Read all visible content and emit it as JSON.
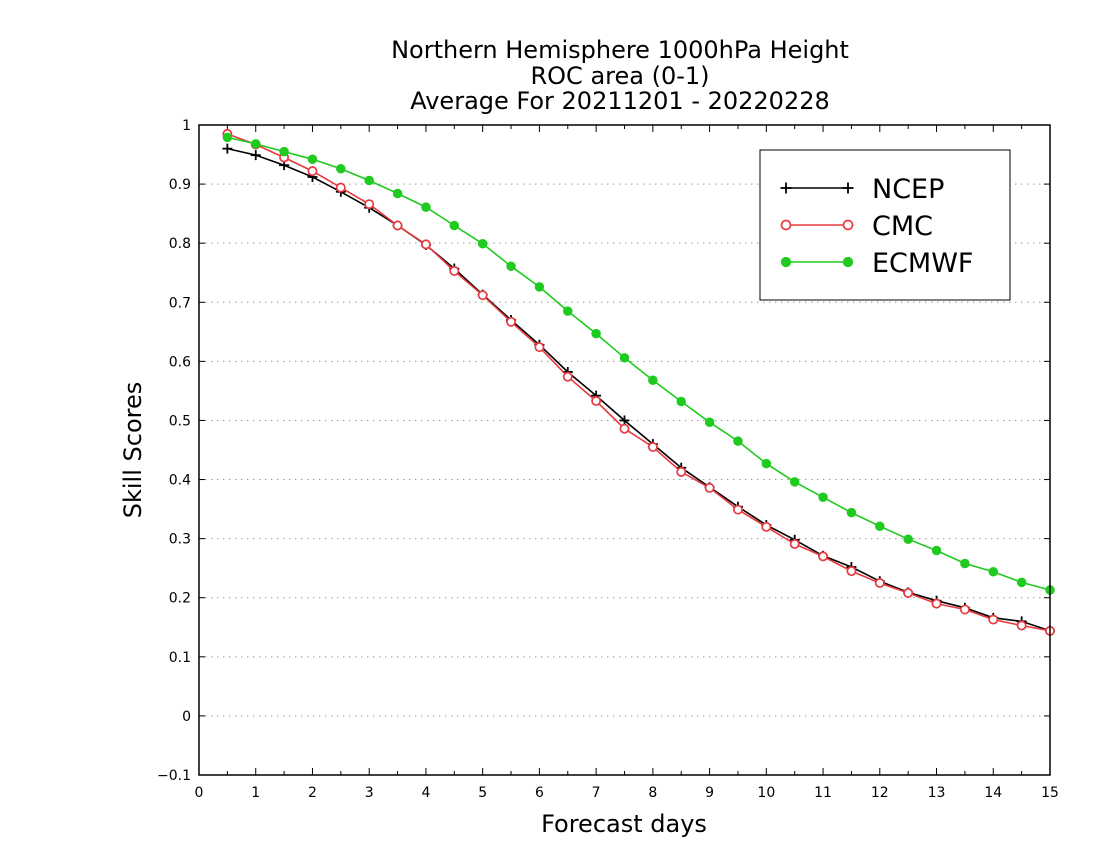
{
  "chart_data": {
    "type": "line",
    "title_lines": [
      "Northern Hemisphere 1000hPa Height",
      "ROC area (0-1)",
      "Average For 20211201 - 20220228"
    ],
    "xlabel": "Forecast days",
    "ylabel": "Skill Scores",
    "xlim": [
      0,
      15
    ],
    "ylim": [
      -0.1,
      1
    ],
    "x_ticks": [
      "0",
      "1",
      "2",
      "3",
      "4",
      "5",
      "6",
      "7",
      "8",
      "9",
      "10",
      "11",
      "12",
      "13",
      "14",
      "15"
    ],
    "y_ticks": [
      "−0.1",
      "0",
      "0.1",
      "0.2",
      "0.3",
      "0.4",
      "0.5",
      "0.6",
      "0.7",
      "0.8",
      "0.9",
      "1"
    ],
    "grid": "horizontal dotted",
    "legend_position": "top-right",
    "x": [
      0.5,
      1,
      1.5,
      2,
      2.5,
      3,
      3.5,
      4,
      4.5,
      5,
      5.5,
      6,
      6.5,
      7,
      7.5,
      8,
      8.5,
      9,
      9.5,
      10,
      10.5,
      11,
      11.5,
      12,
      12.5,
      13,
      13.5,
      14,
      14.5,
      15
    ],
    "series": [
      {
        "name": "NCEP",
        "color": "#000000",
        "marker": "plus",
        "values": [
          0.96,
          0.949,
          0.932,
          0.912,
          0.887,
          0.86,
          0.83,
          0.797,
          0.757,
          0.713,
          0.67,
          0.628,
          0.582,
          0.542,
          0.5,
          0.46,
          0.42,
          0.387,
          0.354,
          0.323,
          0.298,
          0.271,
          0.252,
          0.228,
          0.209,
          0.195,
          0.183,
          0.166,
          0.16,
          0.144
        ]
      },
      {
        "name": "CMC",
        "color": "#e8393f",
        "marker": "open-circle",
        "values": [
          0.985,
          0.967,
          0.945,
          0.922,
          0.894,
          0.866,
          0.83,
          0.798,
          0.753,
          0.712,
          0.667,
          0.624,
          0.574,
          0.533,
          0.486,
          0.455,
          0.413,
          0.386,
          0.349,
          0.32,
          0.291,
          0.27,
          0.245,
          0.225,
          0.208,
          0.19,
          0.18,
          0.163,
          0.153,
          0.144
        ]
      },
      {
        "name": "ECMWF",
        "color": "#1ecb1e",
        "marker": "filled-circle",
        "values": [
          0.979,
          0.968,
          0.955,
          0.942,
          0.926,
          0.906,
          0.884,
          0.861,
          0.83,
          0.799,
          0.761,
          0.726,
          0.685,
          0.647,
          0.606,
          0.568,
          0.532,
          0.497,
          0.465,
          0.427,
          0.396,
          0.37,
          0.344,
          0.321,
          0.299,
          0.28,
          0.258,
          0.244,
          0.226,
          0.213
        ]
      }
    ]
  }
}
